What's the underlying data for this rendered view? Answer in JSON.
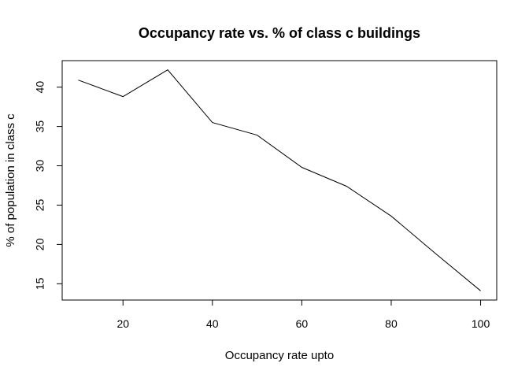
{
  "chart_data": {
    "type": "line",
    "title": "Occupancy rate vs. % of class c buildings",
    "xlabel": "Occupancy rate upto",
    "ylabel": "% of population in class c",
    "x": [
      10,
      20,
      30,
      40,
      50,
      60,
      70,
      80,
      90,
      100
    ],
    "series": [
      {
        "values": [
          40.9,
          38.8,
          42.2,
          35.5,
          33.9,
          29.8,
          27.4,
          23.6,
          18.8,
          14.1
        ]
      }
    ],
    "xlim": [
      6.4,
      103.6
    ],
    "ylim": [
      12.93,
      43.37
    ],
    "x_ticks": [
      20,
      40,
      60,
      80,
      100
    ],
    "y_ticks": [
      15,
      20,
      25,
      30,
      35,
      40
    ],
    "x_tick_labels": [
      "20",
      "40",
      "60",
      "80",
      "100"
    ],
    "y_tick_labels": [
      "15",
      "20",
      "25",
      "30",
      "35",
      "40"
    ],
    "grid": false,
    "line_color": "#000000",
    "legend": "none"
  }
}
